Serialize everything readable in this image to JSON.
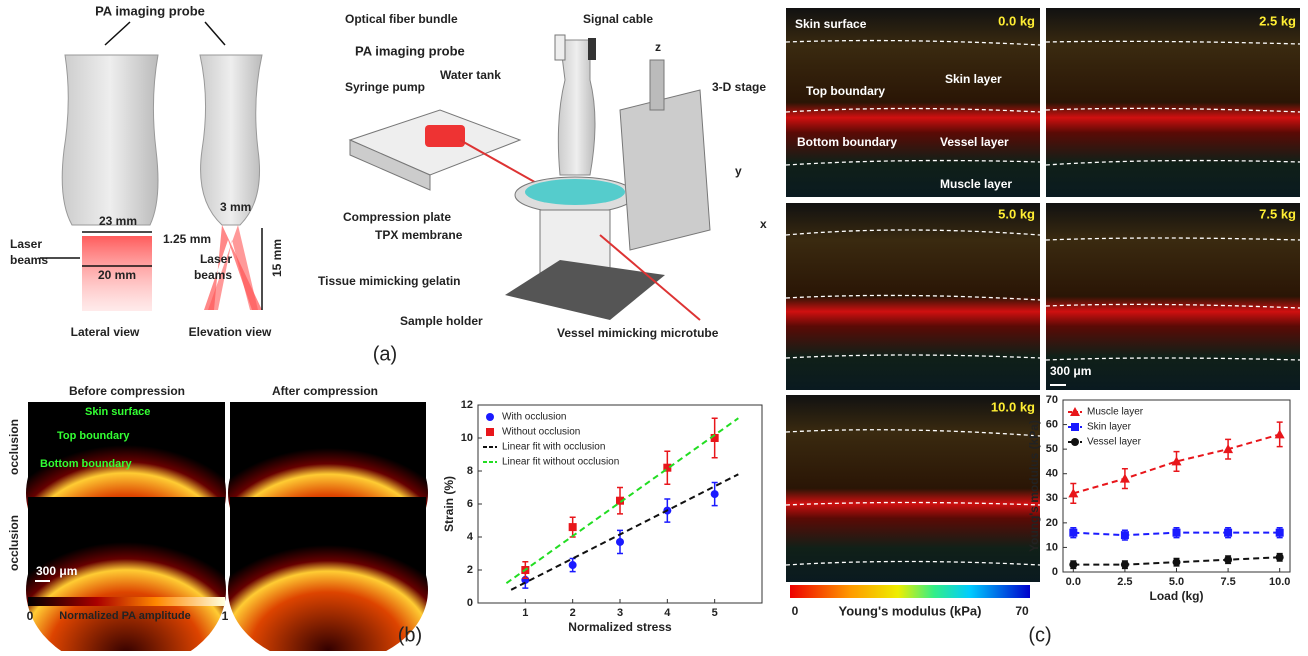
{
  "panel_a": {
    "label": "(a)",
    "probe_label": "PA imaging probe",
    "lateral": {
      "width_top": "23 mm",
      "laser": [
        "Laser",
        "beams"
      ],
      "width_beam": "20 mm",
      "view": "Lateral view"
    },
    "elevation": {
      "width": "3 mm",
      "focus": "1.25 mm",
      "laser": [
        "Laser",
        "beams"
      ],
      "depth": "15 mm",
      "view": "Elevation view"
    },
    "setup": {
      "fiber": "Optical fiber bundle",
      "cable": "Signal cable",
      "probe": "PA imaging probe",
      "pump": "Syringe pump",
      "tank": "Water tank",
      "stage": "3-D stage",
      "plate": "Compression plate",
      "membrane": "TPX membrane",
      "gelatin": "Tissue mimicking gelatin",
      "holder": "Sample holder",
      "tube": "Vessel mimicking microtube",
      "z": "z",
      "y": "y",
      "x": "x"
    }
  },
  "panel_b": {
    "label": "(b)",
    "columns": [
      "Before compression",
      "After compression"
    ],
    "rows": [
      "occlusion",
      "occlusion"
    ],
    "annotations": [
      "Skin surface",
      "Top boundary",
      "Bottom boundary"
    ],
    "scale_bar": "300 μm",
    "colorbar": {
      "min": 0,
      "title": "Normalized PA amplitude",
      "max": 1
    }
  },
  "panel_c": {
    "label": "(c)",
    "loads": [
      "0.0 kg",
      "2.5 kg",
      "5.0 kg",
      "7.5 kg",
      "10.0 kg"
    ],
    "annotations": [
      "Skin surface",
      "Skin layer",
      "Top boundary",
      "Bottom boundary",
      "Vessel layer",
      "Muscle layer"
    ],
    "scale_bar": "300 μm",
    "colorbar": {
      "min": 0,
      "title": "Young's modulus (kPa)",
      "max": 70
    }
  },
  "chart_data": [
    {
      "type": "scatter",
      "x_label": "Normalized stress",
      "y_label": "Strain (%)",
      "x": [
        1,
        2,
        3,
        4,
        5
      ],
      "xlim": [
        0,
        6
      ],
      "xticks": [
        1,
        2,
        3,
        4,
        5
      ],
      "ylim": [
        0,
        12
      ],
      "yticks": [
        0,
        2,
        4,
        6,
        8,
        10,
        12
      ],
      "legend": "upper-left",
      "series": [
        {
          "name": "With occlusion",
          "color": "#1a1aff",
          "marker": "circle",
          "values": [
            1.4,
            2.3,
            3.7,
            5.6,
            6.6
          ],
          "errors": [
            0.5,
            0.4,
            0.7,
            0.7,
            0.7
          ]
        },
        {
          "name": "Without occlusion",
          "color": "#e8161b",
          "marker": "square",
          "values": [
            2.0,
            4.6,
            6.2,
            8.2,
            10.0
          ],
          "errors": [
            0.5,
            0.6,
            0.8,
            1.0,
            1.2
          ]
        },
        {
          "name": "Linear fit with occlusion",
          "color": "#111111",
          "dash": true,
          "x": [
            0.7,
            5.5
          ],
          "values": [
            0.8,
            7.8
          ]
        },
        {
          "name": "Linear fit without occlusion",
          "color": "#22dd22",
          "dash": true,
          "x": [
            0.6,
            5.5
          ],
          "values": [
            1.2,
            11.2
          ]
        }
      ]
    },
    {
      "type": "scatter",
      "x_label": "Load (kg)",
      "y_label": "Young's modulus (kPa)",
      "x": [
        0,
        2.5,
        5,
        7.5,
        10
      ],
      "xlim": [
        -0.5,
        10.5
      ],
      "xticks": [
        {
          "value": 0,
          "label": "0.0"
        },
        2.5,
        {
          "value": 5,
          "label": "5.0"
        },
        7.5,
        {
          "value": 10,
          "label": "10.0"
        }
      ],
      "ylim": [
        0,
        70
      ],
      "yticks": [
        0,
        10,
        20,
        30,
        40,
        50,
        60,
        70
      ],
      "legend": "upper-left",
      "series": [
        {
          "name": "Muscle layer",
          "color": "#e8161b",
          "marker": "triangle",
          "dash": true,
          "values": [
            32,
            38,
            45,
            50,
            56
          ],
          "errors": [
            4,
            4,
            4,
            4,
            5
          ]
        },
        {
          "name": "Skin layer",
          "color": "#1a1aff",
          "marker": "square",
          "dash": true,
          "values": [
            16,
            15,
            16,
            16,
            16
          ],
          "errors": [
            2,
            2,
            2,
            2,
            2
          ]
        },
        {
          "name": "Vessel layer",
          "color": "#111111",
          "marker": "circle",
          "dash": true,
          "values": [
            3,
            3,
            4,
            5,
            6
          ],
          "errors": [
            1.5,
            1.5,
            1.5,
            1.5,
            1.5
          ]
        }
      ]
    }
  ]
}
